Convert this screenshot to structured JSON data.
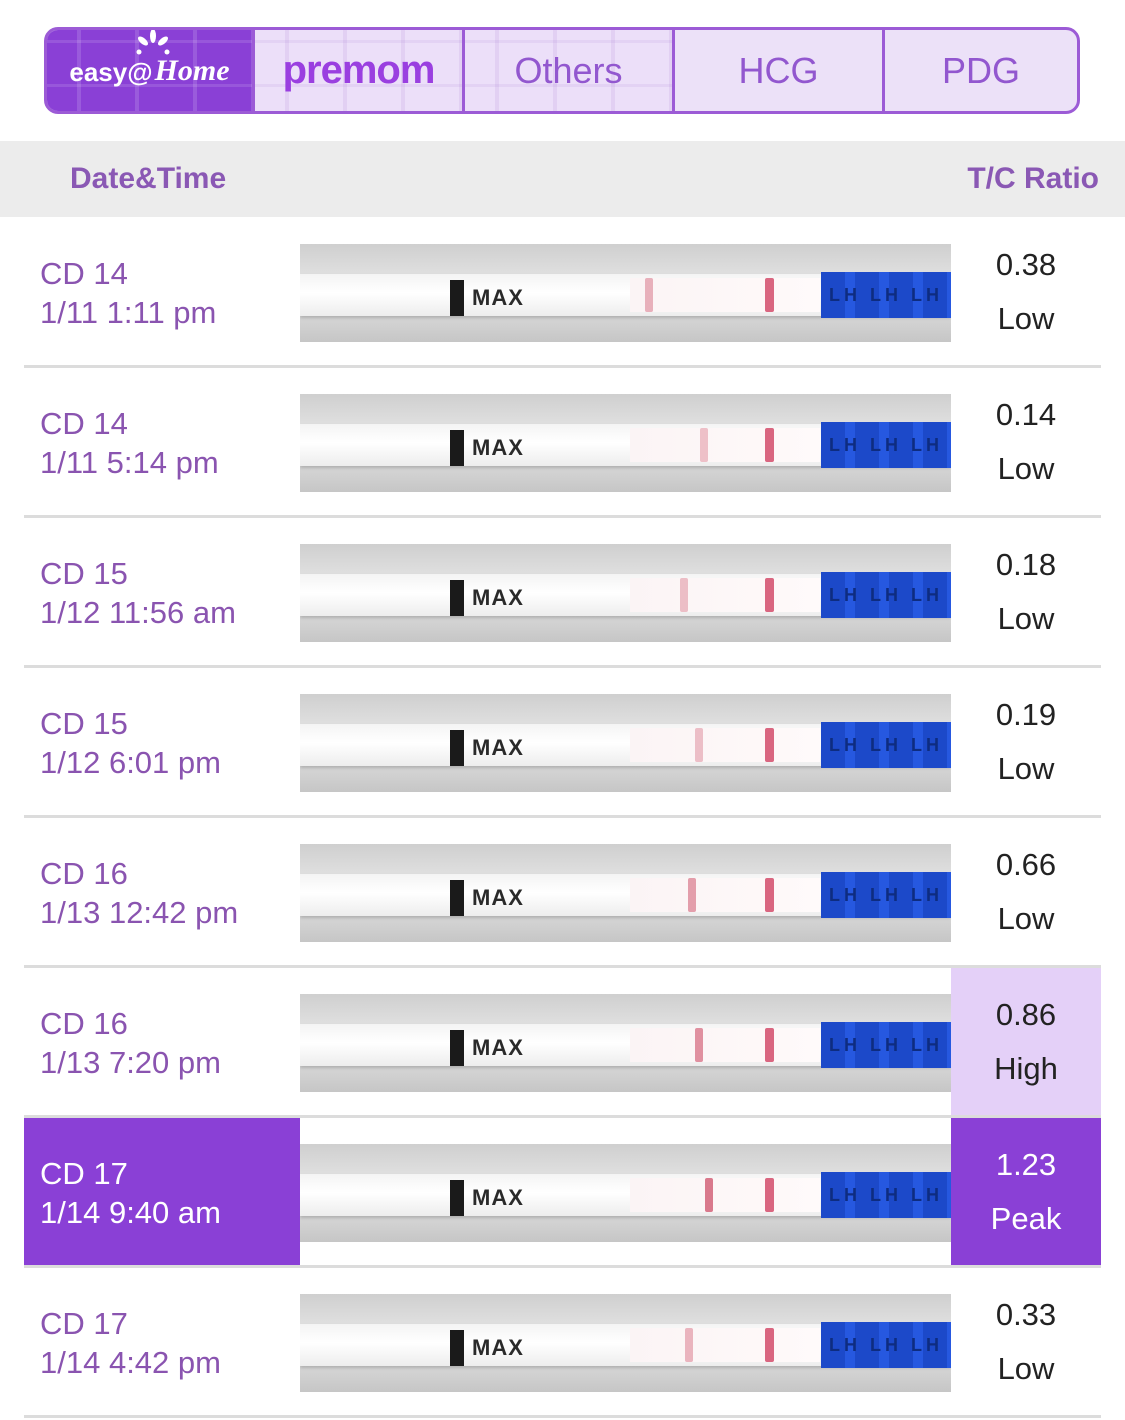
{
  "tabs": [
    {
      "id": "easy-home",
      "label": "easy@Home",
      "brand": true
    },
    {
      "id": "premom",
      "label": "premom",
      "brand": true
    },
    {
      "id": "others",
      "label": "Others"
    },
    {
      "id": "hcg",
      "label": "HCG"
    },
    {
      "id": "pdg",
      "label": "PDG"
    }
  ],
  "logo": {
    "easy_word": "easy@",
    "home_word": "Home",
    "premom_word": "premom"
  },
  "table": {
    "col_date": "Date&Time",
    "col_ratio": "T/C Ratio"
  },
  "colors": {
    "accent": "#8a40d6",
    "high_bg": "#e4d0f8",
    "text_purple": "#8a54b0"
  },
  "rows": [
    {
      "cd": "CD 14",
      "time": "1/11 1:11 pm",
      "ratio": "0.38",
      "level": "Low",
      "t_line": 0.38
    },
    {
      "cd": "CD 14",
      "time": "1/11 5:14 pm",
      "ratio": "0.14",
      "level": "Low",
      "t_line": 0.14
    },
    {
      "cd": "CD 15",
      "time": "1/12 11:56 am",
      "ratio": "0.18",
      "level": "Low",
      "t_line": 0.18
    },
    {
      "cd": "CD 15",
      "time": "1/12 6:01 pm",
      "ratio": "0.19",
      "level": "Low",
      "t_line": 0.19
    },
    {
      "cd": "CD 16",
      "time": "1/13 12:42 pm",
      "ratio": "0.66",
      "level": "Low",
      "t_line": 0.66
    },
    {
      "cd": "CD 16",
      "time": "1/13 7:20 pm",
      "ratio": "0.86",
      "level": "High",
      "t_line": 0.86
    },
    {
      "cd": "CD 17",
      "time": "1/14 9:40 am",
      "ratio": "1.23",
      "level": "Peak",
      "t_line": 1.23
    },
    {
      "cd": "CD 17",
      "time": "1/14 4:42 pm",
      "ratio": "0.33",
      "level": "Low",
      "t_line": 0.33
    }
  ],
  "strip": {
    "max_label": "MAX",
    "blue_label": "LH LH LH"
  }
}
